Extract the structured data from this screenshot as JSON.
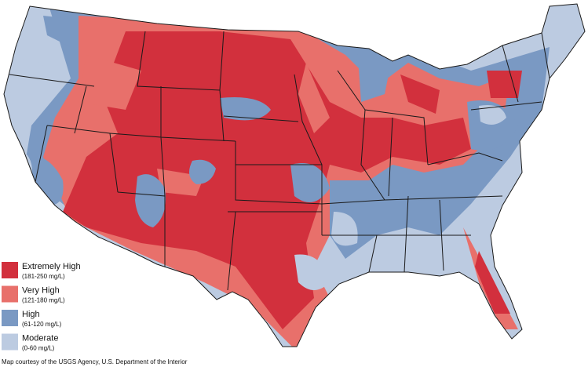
{
  "legend": [
    {
      "label": "Extremely High",
      "range": "(181-250 mg/L)",
      "color": "#d2303d"
    },
    {
      "label": "Very High",
      "range": "(121-180 mg/L)",
      "color": "#e8706b"
    },
    {
      "label": "High",
      "range": "(61-120 mg/L)",
      "color": "#7a99c3"
    },
    {
      "label": "Moderate",
      "range": "(0-60 mg/L)",
      "color": "#bccbe1"
    }
  ],
  "credit": "Map courtesy of the USGS Agency, U.S. Department of the Interior"
}
